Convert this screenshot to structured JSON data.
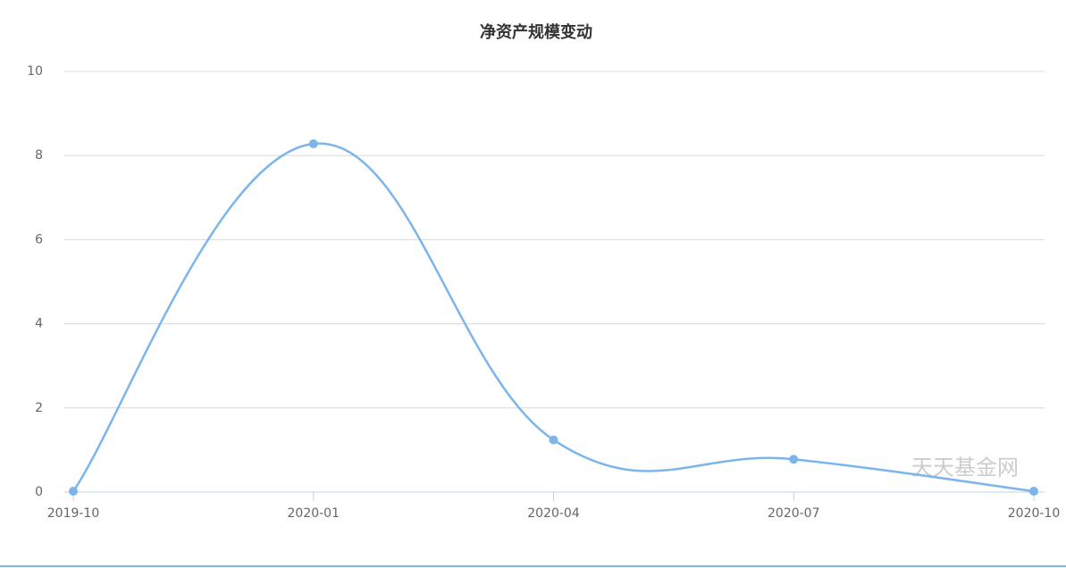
{
  "chart_data": {
    "type": "line",
    "title": "净资产规模变动",
    "categories": [
      "2019-10",
      "2020-01",
      "2020-04",
      "2020-07",
      "2020-10"
    ],
    "series": [
      {
        "name": "净资产规模",
        "color": "#7cb5ec",
        "values": [
          0.02,
          8.28,
          1.24,
          0.78,
          0.02
        ]
      }
    ],
    "ylim": [
      0,
      10
    ],
    "yticks": [
      0,
      2,
      4,
      6,
      8,
      10
    ],
    "grid": true,
    "smooth": true,
    "watermark": "天天基金网"
  }
}
